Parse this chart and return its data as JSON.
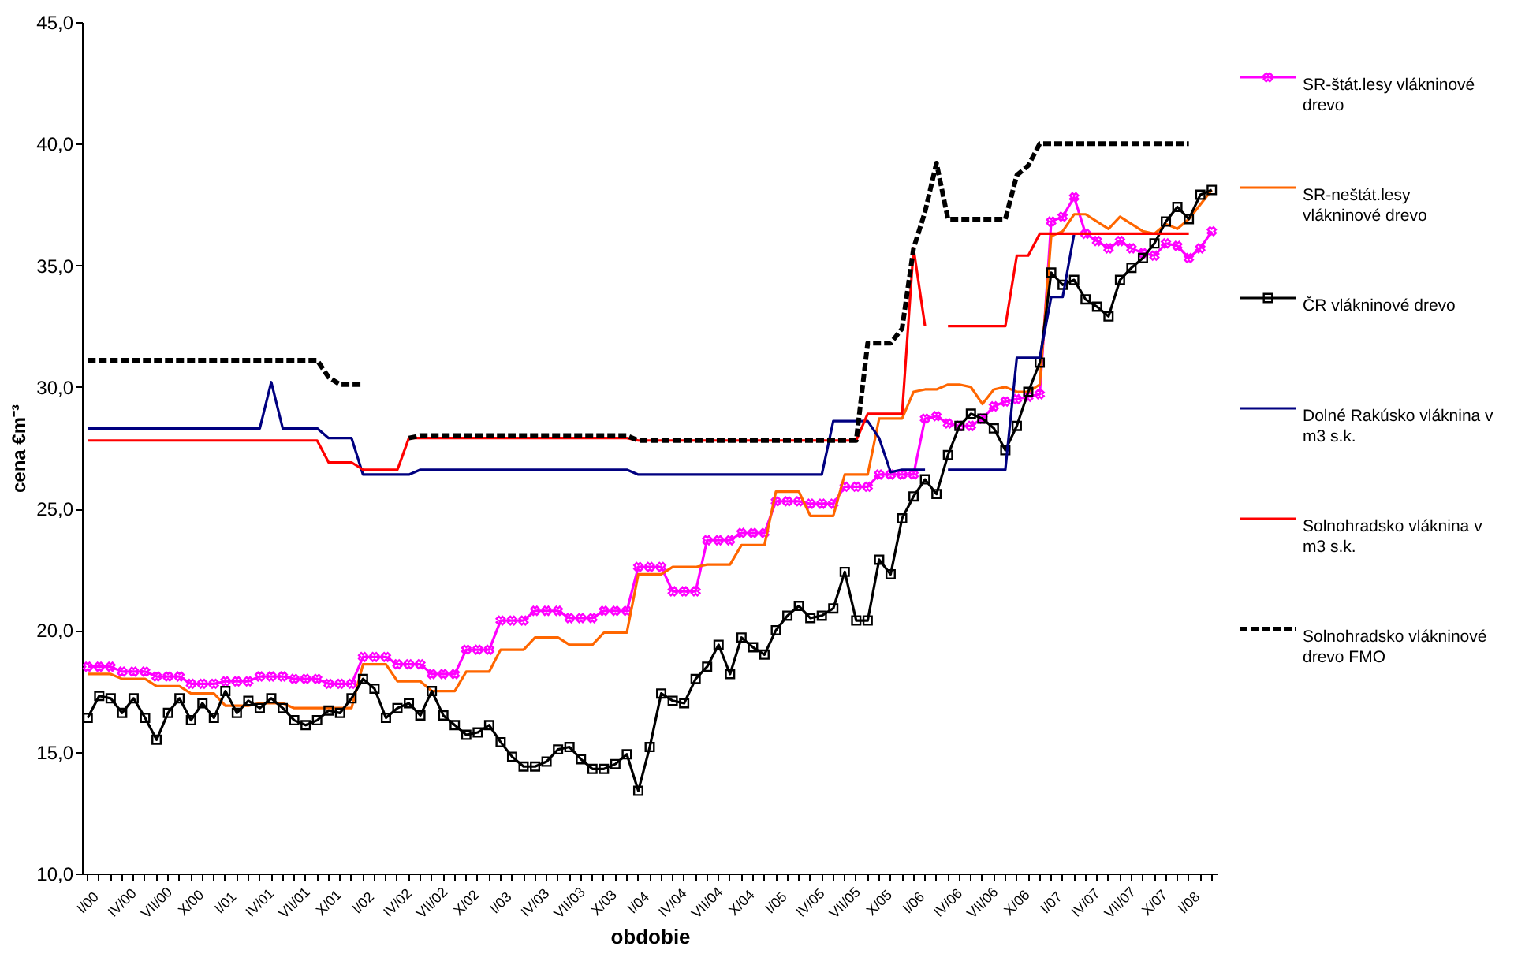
{
  "chart_data": {
    "type": "line",
    "xlabel": "obdobie",
    "ylabel": "cena €m⁻³",
    "categories": [
      "I/00",
      null,
      null,
      "IV/00",
      null,
      null,
      "VII/00",
      null,
      null,
      "X/00",
      null,
      null,
      "I/01",
      null,
      null,
      "IV/01",
      null,
      null,
      "VII/01",
      null,
      null,
      "X/01",
      null,
      null,
      "I/02",
      null,
      null,
      "IV/02",
      null,
      null,
      "VII/02",
      null,
      null,
      "X/02",
      null,
      null,
      "I/03",
      null,
      null,
      "IV/03",
      null,
      null,
      "VII/03",
      null,
      null,
      "X/03",
      null,
      null,
      "I/04",
      null,
      null,
      "IV/04",
      null,
      null,
      "VII/04",
      null,
      null,
      "X/04",
      null,
      null,
      "I/05",
      null,
      null,
      "IV/05",
      null,
      null,
      "VII/05",
      null,
      null,
      "X/05",
      null,
      null,
      "I/06",
      null,
      null,
      "IV/06",
      null,
      null,
      "VII/06",
      null,
      null,
      "X/06",
      null,
      null,
      "I/07",
      null,
      null,
      "IV/07",
      null,
      null,
      "VII/07",
      null,
      null,
      "X/07",
      null,
      null,
      "I/08",
      null,
      null
    ],
    "ylim": [
      10,
      45
    ],
    "yticks": [
      {
        "value": 10,
        "label": "10,0"
      },
      {
        "value": 15,
        "label": "15,0"
      },
      {
        "value": 20,
        "label": "20,0"
      },
      {
        "value": 25,
        "label": "25,0"
      },
      {
        "value": 30,
        "label": "30,0"
      },
      {
        "value": 35,
        "label": "35,0"
      },
      {
        "value": 40,
        "label": "40,0"
      },
      {
        "value": 45,
        "label": "45,0"
      }
    ],
    "grid": false,
    "legend": "right",
    "series": [
      {
        "name": "SR-štát.lesy vlákninové drevo",
        "color": "#ff00ff",
        "marker": "cross",
        "line_style": "solid",
        "values": [
          18.5,
          18.5,
          18.5,
          18.3,
          18.3,
          18.3,
          18.1,
          18.1,
          18.1,
          17.8,
          17.8,
          17.8,
          17.9,
          17.9,
          17.9,
          18.1,
          18.1,
          18.1,
          18.0,
          18.0,
          18.0,
          17.8,
          17.8,
          17.8,
          18.9,
          18.9,
          18.9,
          18.6,
          18.6,
          18.6,
          18.2,
          18.2,
          18.2,
          19.2,
          19.2,
          19.2,
          20.4,
          20.4,
          20.4,
          20.8,
          20.8,
          20.8,
          20.5,
          20.5,
          20.5,
          20.8,
          20.8,
          20.8,
          22.6,
          22.6,
          22.6,
          21.6,
          21.6,
          21.6,
          23.7,
          23.7,
          23.7,
          24.0,
          24.0,
          24.0,
          25.3,
          25.3,
          25.3,
          25.2,
          25.2,
          25.2,
          25.9,
          25.9,
          25.9,
          26.4,
          26.4,
          26.4,
          26.4,
          28.7,
          28.8,
          28.5,
          28.4,
          28.4,
          28.7,
          29.2,
          29.4,
          29.5,
          29.6,
          29.7,
          36.8,
          37.0,
          37.8,
          36.3,
          36.0,
          35.7,
          36.0,
          35.7,
          35.5,
          35.4,
          35.9,
          35.8,
          35.3,
          35.7,
          36.4
        ]
      },
      {
        "name": "SR-neštát.lesy vlákninové drevo",
        "color": "#ff6600",
        "marker": "none",
        "line_style": "solid",
        "values": [
          18.2,
          18.2,
          18.2,
          18.0,
          18.0,
          18.0,
          17.7,
          17.7,
          17.7,
          17.4,
          17.4,
          17.4,
          16.9,
          16.9,
          16.9,
          17.0,
          17.0,
          17.0,
          16.8,
          16.8,
          16.8,
          16.8,
          16.8,
          16.8,
          18.6,
          18.6,
          18.6,
          17.9,
          17.9,
          17.9,
          17.5,
          17.5,
          17.5,
          18.3,
          18.3,
          18.3,
          19.2,
          19.2,
          19.2,
          19.7,
          19.7,
          19.7,
          19.4,
          19.4,
          19.4,
          19.9,
          19.9,
          19.9,
          22.3,
          22.3,
          22.3,
          22.6,
          22.6,
          22.6,
          22.7,
          22.7,
          22.7,
          23.5,
          23.5,
          23.5,
          25.7,
          25.7,
          25.7,
          24.7,
          24.7,
          24.7,
          26.4,
          26.4,
          26.4,
          28.7,
          28.7,
          28.7,
          29.8,
          29.9,
          29.9,
          30.1,
          30.1,
          30.0,
          29.3,
          29.9,
          30.0,
          29.8,
          29.8,
          30.1,
          36.2,
          36.4,
          37.1,
          37.1,
          36.8,
          36.5,
          37.0,
          36.7,
          36.4,
          36.3,
          36.7,
          36.5,
          36.9,
          37.5,
          38.1
        ]
      },
      {
        "name": "ČR vlákninové drevo",
        "color": "#000000",
        "marker": "square",
        "line_style": "solid",
        "values": [
          16.4,
          17.3,
          17.2,
          16.6,
          17.2,
          16.4,
          15.5,
          16.6,
          17.2,
          16.3,
          17.0,
          16.4,
          17.5,
          16.6,
          17.1,
          16.8,
          17.2,
          16.8,
          16.3,
          16.1,
          16.3,
          16.7,
          16.6,
          17.2,
          18.0,
          17.6,
          16.4,
          16.8,
          17.0,
          16.5,
          17.5,
          16.5,
          16.1,
          15.7,
          15.8,
          16.1,
          15.4,
          14.8,
          14.4,
          14.4,
          14.6,
          15.1,
          15.2,
          14.7,
          14.3,
          14.3,
          14.5,
          14.9,
          13.4,
          15.2,
          17.4,
          17.1,
          17.0,
          18.0,
          18.5,
          19.4,
          18.2,
          19.7,
          19.3,
          19.0,
          20.0,
          20.6,
          21.0,
          20.5,
          20.6,
          20.9,
          22.4,
          20.4,
          20.4,
          22.9,
          22.3,
          24.6,
          25.5,
          26.2,
          25.6,
          27.2,
          28.4,
          28.9,
          28.7,
          28.3,
          27.4,
          28.4,
          29.8,
          31.0,
          34.7,
          34.2,
          34.4,
          33.6,
          33.3,
          32.9,
          34.4,
          34.9,
          35.3,
          35.9,
          36.8,
          37.4,
          36.9,
          37.9,
          38.1
        ]
      },
      {
        "name": "Dolné Rakúsko vláknina v m3 s.k.",
        "color": "#000080",
        "marker": "none",
        "line_style": "solid",
        "values": [
          28.3,
          28.3,
          28.3,
          28.3,
          28.3,
          28.3,
          28.3,
          28.3,
          28.3,
          28.3,
          28.3,
          28.3,
          28.3,
          28.3,
          28.3,
          28.3,
          30.2,
          28.3,
          28.3,
          28.3,
          28.3,
          27.9,
          27.9,
          27.9,
          26.4,
          26.4,
          26.4,
          26.4,
          26.4,
          26.6,
          26.6,
          26.6,
          26.6,
          26.6,
          26.6,
          26.6,
          26.6,
          26.6,
          26.6,
          26.6,
          26.6,
          26.6,
          26.6,
          26.6,
          26.6,
          26.6,
          26.6,
          26.6,
          26.4,
          26.4,
          26.4,
          26.4,
          26.4,
          26.4,
          26.4,
          26.4,
          26.4,
          26.4,
          26.4,
          26.4,
          26.4,
          26.4,
          26.4,
          26.4,
          26.4,
          28.6,
          28.6,
          28.6,
          28.6,
          27.9,
          26.5,
          26.6,
          26.6,
          26.6,
          null,
          26.6,
          26.6,
          26.6,
          26.6,
          26.6,
          26.6,
          31.2,
          31.2,
          31.2,
          33.7,
          33.7,
          36.3,
          null,
          null,
          null,
          null,
          null,
          null,
          null,
          null,
          null,
          null,
          null,
          null
        ]
      },
      {
        "name": "Solnohradsko vláknina v m3 s.k.",
        "color": "#ff0000",
        "marker": "none",
        "line_style": "solid",
        "values": [
          27.8,
          27.8,
          27.8,
          27.8,
          27.8,
          27.8,
          27.8,
          27.8,
          27.8,
          27.8,
          27.8,
          27.8,
          27.8,
          27.8,
          27.8,
          27.8,
          27.8,
          27.8,
          27.8,
          27.8,
          27.8,
          26.9,
          26.9,
          26.9,
          26.6,
          26.6,
          26.6,
          26.6,
          27.9,
          27.9,
          27.9,
          27.9,
          27.9,
          27.9,
          27.9,
          27.9,
          27.9,
          27.9,
          27.9,
          27.9,
          27.9,
          27.9,
          27.9,
          27.9,
          27.9,
          27.9,
          27.9,
          27.9,
          27.8,
          27.8,
          27.8,
          27.8,
          27.8,
          27.8,
          27.8,
          27.8,
          27.8,
          27.8,
          27.8,
          27.8,
          27.8,
          27.8,
          27.8,
          27.8,
          27.8,
          27.8,
          27.8,
          27.8,
          28.9,
          28.9,
          28.9,
          28.9,
          35.7,
          32.5,
          null,
          32.5,
          32.5,
          32.5,
          32.5,
          32.5,
          32.5,
          35.4,
          35.4,
          36.3,
          36.3,
          36.3,
          36.3,
          36.3,
          36.3,
          36.3,
          36.3,
          36.3,
          36.3,
          36.3,
          36.3,
          36.3,
          36.3,
          null,
          null
        ]
      },
      {
        "name": "Solnohradsko vlákninové drevo FMO",
        "color": "#000000",
        "marker": "none",
        "line_style": "dashed",
        "values": [
          31.1,
          31.1,
          31.1,
          31.1,
          31.1,
          31.1,
          31.1,
          31.1,
          31.1,
          31.1,
          31.1,
          31.1,
          31.1,
          31.1,
          31.1,
          31.1,
          31.1,
          31.1,
          31.1,
          31.1,
          31.1,
          30.4,
          30.1,
          30.1,
          30.1,
          null,
          null,
          null,
          27.9,
          28.0,
          28.0,
          28.0,
          28.0,
          28.0,
          28.0,
          28.0,
          28.0,
          28.0,
          28.0,
          28.0,
          28.0,
          28.0,
          28.0,
          28.0,
          28.0,
          28.0,
          28.0,
          28.0,
          27.8,
          27.8,
          27.8,
          27.8,
          27.8,
          27.8,
          27.8,
          27.8,
          27.8,
          27.8,
          27.8,
          27.8,
          27.8,
          27.8,
          27.8,
          27.8,
          27.8,
          27.8,
          27.8,
          27.8,
          31.8,
          31.8,
          31.8,
          32.4,
          35.7,
          37.2,
          39.2,
          36.9,
          36.9,
          36.9,
          36.9,
          36.9,
          36.9,
          38.7,
          39.1,
          40.0,
          40.0,
          40.0,
          40.0,
          40.0,
          40.0,
          40.0,
          40.0,
          40.0,
          40.0,
          40.0,
          40.0,
          40.0,
          40.0,
          null,
          null
        ]
      }
    ]
  }
}
